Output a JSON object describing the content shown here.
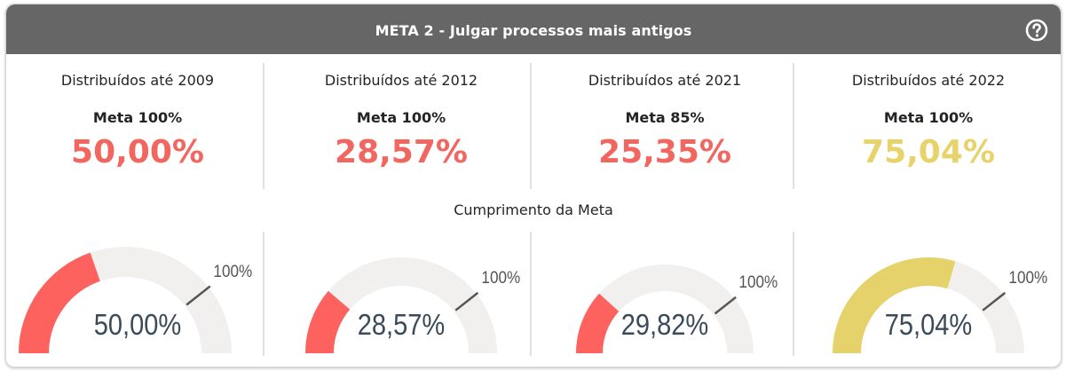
{
  "header": {
    "title": "META 2 - Julgar processos mais antigos",
    "help_icon": "question-circle-icon"
  },
  "kpis": [
    {
      "title": "Distribuídos até 2009",
      "meta": "Meta 100%",
      "value": "50,00%",
      "color": "#f1665f"
    },
    {
      "title": "Distribuídos até 2012",
      "meta": "Meta 100%",
      "value": "28,57%",
      "color": "#f1665f"
    },
    {
      "title": "Distribuídos até 2021",
      "meta": "Meta 85%",
      "value": "25,35%",
      "color": "#f1665f"
    },
    {
      "title": "Distribuídos até 2022",
      "meta": "Meta 100%",
      "value": "75,04%",
      "color": "#e8d26a"
    }
  ],
  "section_label": "Cumprimento da Meta",
  "gauges": [
    {
      "value": 50.0,
      "label": "50,00%",
      "target": 100,
      "target_label": "100%",
      "max": 127,
      "color": "#fd625e"
    },
    {
      "value": 28.57,
      "label": "28,57%",
      "target": 100,
      "target_label": "100%",
      "max": 127,
      "color": "#fd625e"
    },
    {
      "value": 29.82,
      "label": "29,82%",
      "target": 100,
      "target_label": "100%",
      "max": 127,
      "color": "#fd625e"
    },
    {
      "value": 75.04,
      "label": "75,04%",
      "target": 100,
      "target_label": "100%",
      "max": 127,
      "color": "#e6d26a"
    }
  ],
  "colors": {
    "header_bg": "#666666",
    "gauge_track": "#f1f0ef",
    "target_marker": "#555555"
  }
}
